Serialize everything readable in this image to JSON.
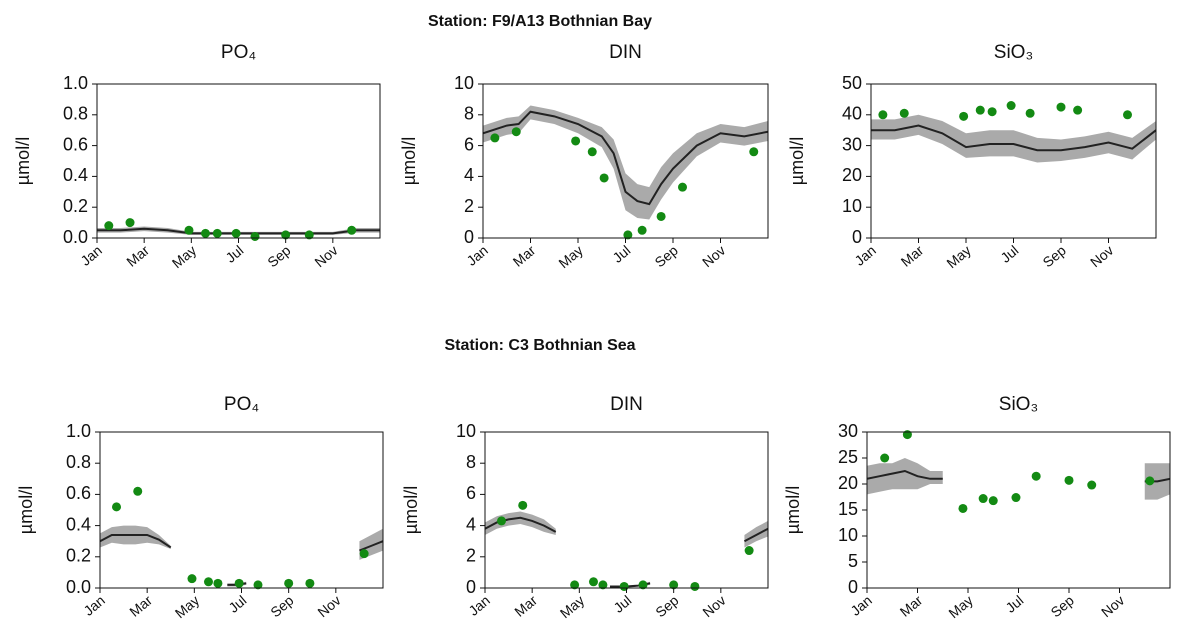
{
  "stations": [
    "Station: F9/A13 Bothnian Bay",
    "Station: C3 Bothnian Sea"
  ],
  "chart_data": [
    {
      "type": "line",
      "title": "PO₄",
      "y_label": "µmol/l",
      "xlim": [
        1,
        13
      ],
      "ylim": [
        0,
        1
      ],
      "xticks": [
        {
          "value": 1,
          "label": "Jan"
        },
        {
          "value": 3,
          "label": "Mar"
        },
        {
          "value": 5,
          "label": "May"
        },
        {
          "value": 7,
          "label": "Jul"
        },
        {
          "value": 9,
          "label": "Sep"
        },
        {
          "value": 11,
          "label": "Nov"
        }
      ],
      "yticks": [
        {
          "value": 0,
          "label": "0.0"
        },
        0.2,
        0.4,
        0.6,
        0.8,
        {
          "value": 1,
          "label": "1.0"
        }
      ],
      "series": [
        {
          "type": "line",
          "color": "#222222",
          "band_color": "#aaaaaa",
          "x": [
            1,
            2,
            3,
            4,
            5,
            6,
            7,
            8,
            9,
            10,
            11,
            12,
            13
          ],
          "values": [
            0.05,
            0.05,
            0.06,
            0.05,
            0.03,
            0.03,
            0.03,
            0.03,
            0.03,
            0.03,
            0.03,
            0.05,
            0.05
          ],
          "lower": [
            0.035,
            0.035,
            0.045,
            0.035,
            0.02,
            0.02,
            0.02,
            0.02,
            0.02,
            0.02,
            0.02,
            0.035,
            0.035
          ],
          "upper": [
            0.065,
            0.065,
            0.075,
            0.065,
            0.04,
            0.04,
            0.04,
            0.04,
            0.04,
            0.04,
            0.04,
            0.065,
            0.065
          ]
        },
        {
          "type": "scatter",
          "color": "#138a13",
          "x": [
            1.5,
            2.4,
            4.9,
            5.6,
            6.1,
            6.9,
            7.7,
            9,
            10,
            11.8
          ],
          "values": [
            0.08,
            0.1,
            0.05,
            0.03,
            0.03,
            0.03,
            0.01,
            0.02,
            0.02,
            0.05
          ]
        }
      ]
    },
    {
      "type": "line",
      "title": "DIN",
      "y_label": "µmol/l",
      "xlim": [
        1,
        13
      ],
      "ylim": [
        0,
        10
      ],
      "xticks": [
        {
          "value": 1,
          "label": "Jan"
        },
        {
          "value": 3,
          "label": "Mar"
        },
        {
          "value": 5,
          "label": "May"
        },
        {
          "value": 7,
          "label": "Jul"
        },
        {
          "value": 9,
          "label": "Sep"
        },
        {
          "value": 11,
          "label": "Nov"
        }
      ],
      "yticks": [
        0,
        2,
        4,
        6,
        8,
        10
      ],
      "series": [
        {
          "type": "line",
          "color": "#222222",
          "band_color": "#aaaaaa",
          "x": [
            1,
            2,
            2.5,
            3,
            4,
            5,
            6,
            6.5,
            7,
            7.5,
            8,
            8.5,
            9,
            10,
            11,
            12,
            13
          ],
          "values": [
            6.8,
            7.3,
            7.4,
            8.2,
            7.9,
            7.4,
            6.6,
            5.5,
            3.0,
            2.4,
            2.2,
            3.5,
            4.5,
            6.0,
            6.8,
            6.6,
            6.9
          ],
          "lower": [
            6.2,
            6.7,
            6.8,
            7.7,
            7.4,
            6.8,
            5.9,
            4.5,
            1.8,
            1.3,
            1.2,
            2.5,
            3.6,
            5.3,
            6.2,
            6.0,
            6.3
          ],
          "upper": [
            7.3,
            7.8,
            7.9,
            8.6,
            8.3,
            7.8,
            7.2,
            6.4,
            4.2,
            3.5,
            3.3,
            4.6,
            5.5,
            6.8,
            7.4,
            7.2,
            7.6
          ]
        },
        {
          "type": "scatter",
          "color": "#138a13",
          "x": [
            1.5,
            2.4,
            4.9,
            5.6,
            6.1,
            7.1,
            7.7,
            8.5,
            9.4,
            12.4
          ],
          "values": [
            6.5,
            6.9,
            6.3,
            5.6,
            3.9,
            0.2,
            0.5,
            1.4,
            3.3,
            5.6
          ]
        }
      ]
    },
    {
      "type": "line",
      "title": "SiO₃",
      "y_label": "µmol/l",
      "xlim": [
        1,
        13
      ],
      "ylim": [
        0,
        50
      ],
      "xticks": [
        {
          "value": 1,
          "label": "Jan"
        },
        {
          "value": 3,
          "label": "Mar"
        },
        {
          "value": 5,
          "label": "May"
        },
        {
          "value": 7,
          "label": "Jul"
        },
        {
          "value": 9,
          "label": "Sep"
        },
        {
          "value": 11,
          "label": "Nov"
        }
      ],
      "yticks": [
        0,
        10,
        20,
        30,
        40,
        50
      ],
      "series": [
        {
          "type": "line",
          "color": "#222222",
          "band_color": "#aaaaaa",
          "x": [
            1,
            2,
            3,
            4,
            5,
            6,
            7,
            8,
            9,
            10,
            11,
            12,
            13
          ],
          "values": [
            35,
            35,
            36.5,
            34,
            29.5,
            30.5,
            30.5,
            28.5,
            28.5,
            29.5,
            31,
            29,
            35
          ],
          "lower": [
            32,
            32,
            33.5,
            30.5,
            26,
            26.5,
            26.5,
            24.5,
            25,
            26,
            27.5,
            25.5,
            32
          ],
          "upper": [
            38.5,
            38.5,
            40,
            38,
            34,
            35,
            35,
            32.5,
            32,
            33,
            34.5,
            32.5,
            38
          ]
        },
        {
          "type": "scatter",
          "color": "#138a13",
          "x": [
            1.5,
            2.4,
            4.9,
            5.6,
            6.1,
            6.9,
            7.7,
            9,
            9.7,
            11.8
          ],
          "values": [
            40,
            40.5,
            39.5,
            41.5,
            41,
            43,
            40.5,
            42.5,
            41.5,
            40
          ]
        }
      ]
    },
    {
      "type": "line",
      "title": "PO₄",
      "y_label": "µmol/l",
      "xlim": [
        1,
        13
      ],
      "ylim": [
        0,
        1
      ],
      "xticks": [
        {
          "value": 1,
          "label": "Jan"
        },
        {
          "value": 3,
          "label": "Mar"
        },
        {
          "value": 5,
          "label": "May"
        },
        {
          "value": 7,
          "label": "Jul"
        },
        {
          "value": 9,
          "label": "Sep"
        },
        {
          "value": 11,
          "label": "Nov"
        }
      ],
      "yticks": [
        {
          "value": 0,
          "label": "0.0"
        },
        0.2,
        0.4,
        0.6,
        0.8,
        {
          "value": 1,
          "label": "1.0"
        }
      ],
      "series": [
        {
          "type": "line",
          "color": "#222222",
          "band_color": "#aaaaaa",
          "x": [
            1,
            1.5,
            2,
            2.5,
            3,
            3.5,
            4,
            5,
            6.4,
            6.8,
            7.2,
            8,
            12,
            12.5,
            13
          ],
          "values": [
            0.3,
            0.34,
            0.34,
            0.34,
            0.34,
            0.31,
            0.26,
            null,
            0.02,
            0.02,
            0.03,
            null,
            0.24,
            0.27,
            0.3
          ],
          "lower": [
            0.26,
            0.29,
            0.28,
            0.28,
            0.29,
            0.28,
            0.25,
            null,
            0.01,
            0.01,
            0.02,
            null,
            0.18,
            0.21,
            0.24
          ],
          "upper": [
            0.35,
            0.39,
            0.4,
            0.4,
            0.39,
            0.34,
            0.27,
            null,
            0.03,
            0.03,
            0.04,
            null,
            0.3,
            0.34,
            0.38
          ]
        },
        {
          "type": "scatter",
          "color": "#138a13",
          "x": [
            1.7,
            2.6,
            4.9,
            5.6,
            6,
            6.9,
            7.7,
            9,
            9.9,
            12.2
          ],
          "values": [
            0.52,
            0.62,
            0.06,
            0.04,
            0.03,
            0.03,
            0.02,
            0.03,
            0.03,
            0.22
          ]
        }
      ]
    },
    {
      "type": "line",
      "title": "DIN",
      "y_label": "µmol/l",
      "xlim": [
        1,
        13
      ],
      "ylim": [
        0,
        10
      ],
      "xticks": [
        {
          "value": 1,
          "label": "Jan"
        },
        {
          "value": 3,
          "label": "Mar"
        },
        {
          "value": 5,
          "label": "May"
        },
        {
          "value": 7,
          "label": "Jul"
        },
        {
          "value": 9,
          "label": "Sep"
        },
        {
          "value": 11,
          "label": "Nov"
        }
      ],
      "yticks": [
        0,
        2,
        4,
        6,
        8,
        10
      ],
      "series": [
        {
          "type": "line",
          "color": "#222222",
          "band_color": "#aaaaaa",
          "x": [
            1,
            1.5,
            2,
            2.5,
            3,
            3.5,
            4,
            5,
            6.3,
            7,
            7.5,
            8,
            10,
            12,
            12.5,
            13
          ],
          "values": [
            3.8,
            4.2,
            4.4,
            4.5,
            4.3,
            4.0,
            3.6,
            null,
            0.1,
            0.1,
            0.15,
            0.3,
            null,
            3.0,
            3.4,
            3.8
          ],
          "lower": [
            3.4,
            3.8,
            4.0,
            4.1,
            3.9,
            3.6,
            3.4,
            null,
            0.05,
            0.05,
            0.1,
            0.2,
            null,
            2.6,
            3.0,
            3.3
          ],
          "upper": [
            4.2,
            4.6,
            4.8,
            4.9,
            4.7,
            4.4,
            3.8,
            null,
            0.15,
            0.15,
            0.2,
            0.4,
            null,
            3.4,
            3.9,
            4.3
          ]
        },
        {
          "type": "scatter",
          "color": "#138a13",
          "x": [
            1.7,
            2.6,
            4.8,
            5.6,
            6,
            6.9,
            7.7,
            9,
            9.9,
            12.2
          ],
          "values": [
            4.3,
            5.3,
            0.2,
            0.4,
            0.2,
            0.1,
            0.2,
            0.2,
            0.1,
            2.4
          ]
        }
      ]
    },
    {
      "type": "line",
      "title": "SiO₃",
      "y_label": "µmol/l",
      "xlim": [
        1,
        13
      ],
      "ylim": [
        0,
        30
      ],
      "xticks": [
        {
          "value": 1,
          "label": "Jan"
        },
        {
          "value": 3,
          "label": "Mar"
        },
        {
          "value": 5,
          "label": "May"
        },
        {
          "value": 7,
          "label": "Jul"
        },
        {
          "value": 9,
          "label": "Sep"
        },
        {
          "value": 11,
          "label": "Nov"
        }
      ],
      "yticks": [
        0,
        5,
        10,
        15,
        20,
        25,
        30
      ],
      "series": [
        {
          "type": "line",
          "color": "#222222",
          "band_color": "#aaaaaa",
          "x": [
            1,
            1.5,
            2,
            2.5,
            3,
            3.5,
            4,
            8,
            12,
            12.5,
            13
          ],
          "values": [
            21,
            21.5,
            22,
            22.5,
            21.5,
            21,
            21,
            null,
            20.5,
            20.5,
            21
          ],
          "lower": [
            18,
            18.5,
            19,
            19,
            19,
            20,
            20,
            null,
            17,
            17,
            18
          ],
          "upper": [
            23.5,
            24,
            24,
            25,
            24,
            22.5,
            22.5,
            null,
            24,
            24,
            24
          ]
        },
        {
          "type": "scatter",
          "color": "#138a13",
          "x": [
            1.7,
            2.6,
            4.8,
            5.6,
            6,
            6.9,
            7.7,
            9,
            9.9,
            12.2
          ],
          "values": [
            25,
            29.5,
            15.3,
            17.2,
            16.8,
            17.4,
            21.5,
            20.7,
            19.8,
            20.6
          ]
        }
      ]
    }
  ]
}
